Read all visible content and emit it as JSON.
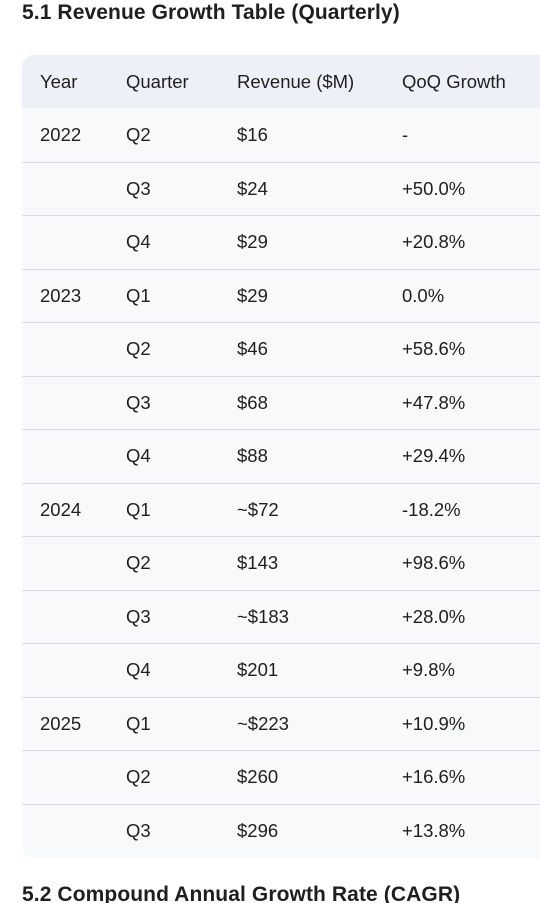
{
  "section1_title": "5.1 Revenue Growth Table (Quarterly)",
  "section2_title": "5.2 Compound Annual Growth Rate (CAGR)",
  "table": {
    "headers": {
      "year": "Year",
      "quarter": "Quarter",
      "revenue": "Revenue ($M)",
      "growth": "QoQ Growth"
    },
    "rows": [
      {
        "year": "2022",
        "quarter": "Q2",
        "revenue": "$16",
        "growth": "-"
      },
      {
        "year": "",
        "quarter": "Q3",
        "revenue": "$24",
        "growth": "+50.0%"
      },
      {
        "year": "",
        "quarter": "Q4",
        "revenue": "$29",
        "growth": "+20.8%"
      },
      {
        "year": "2023",
        "quarter": "Q1",
        "revenue": "$29",
        "growth": "0.0%"
      },
      {
        "year": "",
        "quarter": "Q2",
        "revenue": "$46",
        "growth": "+58.6%"
      },
      {
        "year": "",
        "quarter": "Q3",
        "revenue": "$68",
        "growth": "+47.8%"
      },
      {
        "year": "",
        "quarter": "Q4",
        "revenue": "$88",
        "growth": "+29.4%"
      },
      {
        "year": "2024",
        "quarter": "Q1",
        "revenue": "~$72",
        "growth": "-18.2%"
      },
      {
        "year": "",
        "quarter": "Q2",
        "revenue": "$143",
        "growth": "+98.6%"
      },
      {
        "year": "",
        "quarter": "Q3",
        "revenue": "~$183",
        "growth": "+28.0%"
      },
      {
        "year": "",
        "quarter": "Q4",
        "revenue": "$201",
        "growth": "+9.8%"
      },
      {
        "year": "2025",
        "quarter": "Q1",
        "revenue": "~$223",
        "growth": "+10.9%"
      },
      {
        "year": "",
        "quarter": "Q2",
        "revenue": "$260",
        "growth": "+16.6%"
      },
      {
        "year": "",
        "quarter": "Q3",
        "revenue": "$296",
        "growth": "+13.8%"
      }
    ]
  }
}
